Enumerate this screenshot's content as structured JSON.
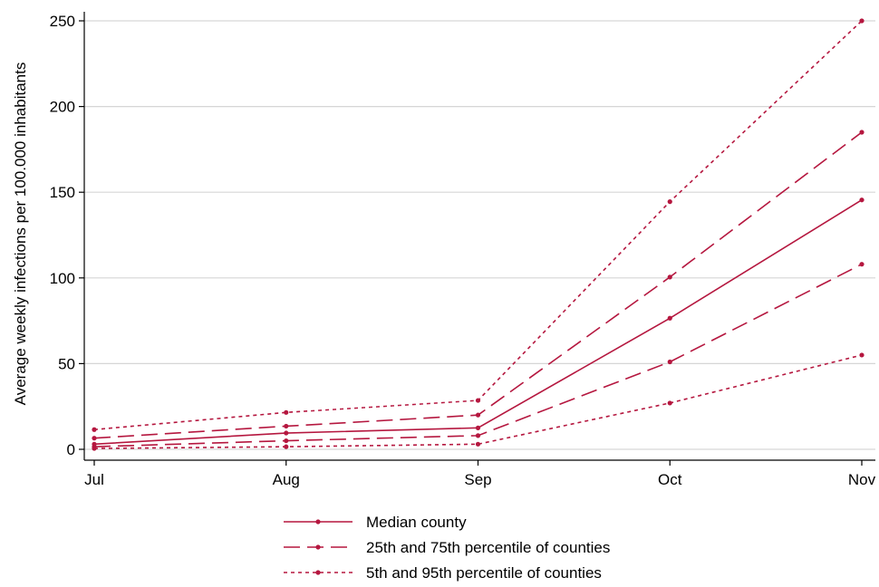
{
  "chart_data": {
    "type": "line",
    "title": "",
    "xlabel": "",
    "ylabel": "Average weekly infections per 100.000 inhabitants",
    "categories": [
      "Jul",
      "Aug",
      "Sep",
      "Oct",
      "Nov"
    ],
    "ylim": [
      0,
      250
    ],
    "yticks": [
      0,
      50,
      100,
      150,
      200,
      250
    ],
    "grid": true,
    "legend_position": "bottom",
    "color": "#b5173f",
    "series": [
      {
        "name": "Median county",
        "style": "solid",
        "values": [
          3,
          9.5,
          12.5,
          76.5,
          145.5
        ]
      },
      {
        "name": "25th and 75th percentile of counties",
        "style": "dashed",
        "values": [
          6.5,
          13.5,
          20,
          100.5,
          185
        ]
      },
      {
        "name": "",
        "style": "dashed",
        "values": [
          1.5,
          5,
          8,
          51,
          108
        ]
      },
      {
        "name": "5th and 95th percentile of counties",
        "style": "dotted",
        "values": [
          11.5,
          21.5,
          28.5,
          144.5,
          250
        ]
      },
      {
        "name": "",
        "style": "dotted",
        "values": [
          0.5,
          1.5,
          3,
          27,
          55
        ]
      }
    ]
  }
}
